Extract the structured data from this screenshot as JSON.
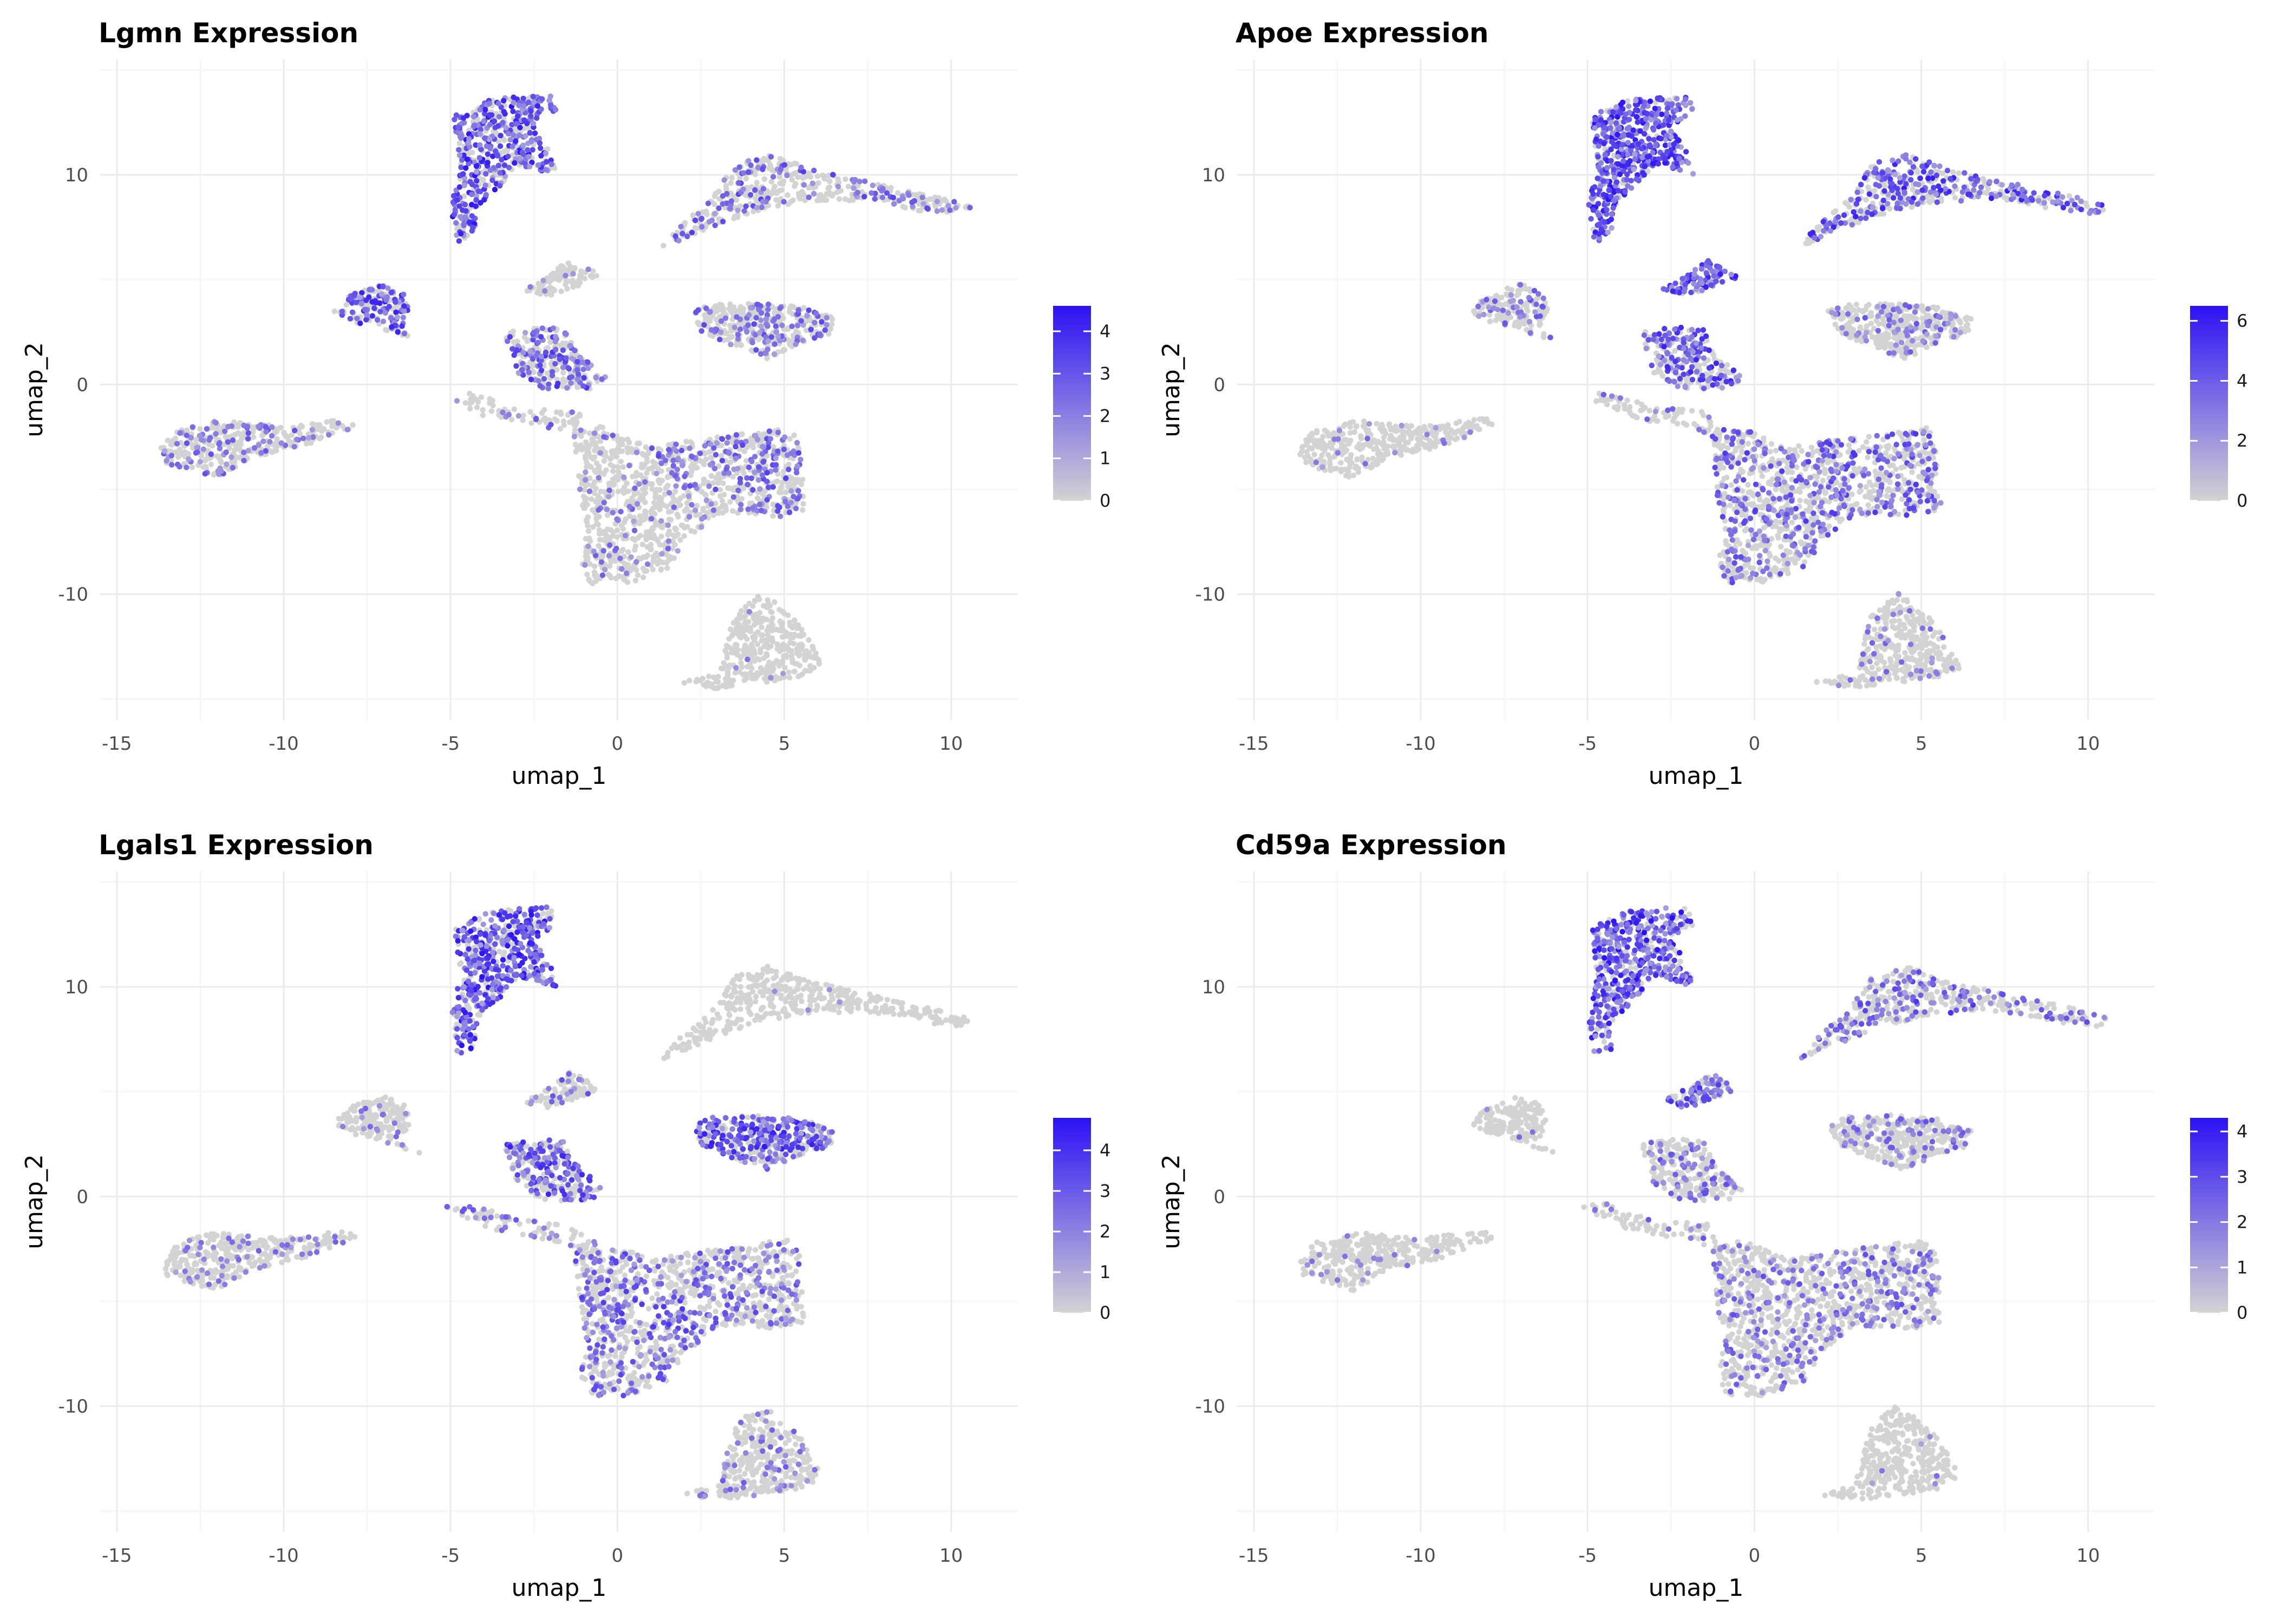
{
  "colors": {
    "low": "#d3d3d3",
    "high": "#2b12f5",
    "grid_major": "#ebebeb",
    "grid_minor": "#f4f4f4"
  },
  "chart_data": [
    {
      "type": "scatter",
      "title": "Lgmn Expression",
      "xlabel": "umap_1",
      "ylabel": "umap_2",
      "xlim": [
        -15.5,
        12
      ],
      "ylim": [
        -16,
        15.5
      ],
      "xticks": [
        -15,
        -10,
        -5,
        0,
        5,
        10
      ],
      "yticks": [
        -10,
        0,
        10
      ],
      "grid": true,
      "legend": {
        "position": "right",
        "min": 0,
        "max": 4.6,
        "ticks": [
          0,
          1,
          2,
          3,
          4
        ]
      },
      "cluster_expression": [
        0.22,
        0.02,
        0.65,
        0.05,
        0.55,
        0.45,
        0.2,
        0.12,
        0.35,
        0.15,
        0.28,
        0.35,
        0.08
      ]
    },
    {
      "type": "scatter",
      "title": "Apoe Expression",
      "xlabel": "umap_1",
      "ylabel": "umap_2",
      "xlim": [
        -15.5,
        12
      ],
      "ylim": [
        -16,
        15.5
      ],
      "xticks": [
        -15,
        -10,
        -5,
        0,
        5,
        10
      ],
      "yticks": [
        -10,
        0,
        10
      ],
      "grid": true,
      "legend": {
        "position": "right",
        "min": 0,
        "max": 6.5,
        "ticks": [
          0,
          2,
          4,
          6
        ]
      },
      "cluster_expression": [
        0.05,
        0.1,
        0.9,
        0.85,
        0.25,
        0.55,
        0.15,
        0.4,
        0.4,
        0.3,
        0.2,
        0.55,
        0.6
      ]
    },
    {
      "type": "scatter",
      "title": "Lgals1 Expression",
      "xlabel": "umap_1",
      "ylabel": "umap_2",
      "xlim": [
        -15.5,
        12
      ],
      "ylim": [
        -16,
        15.5
      ],
      "xticks": [
        -15,
        -10,
        -5,
        0,
        5,
        10
      ],
      "yticks": [
        -10,
        0,
        10
      ],
      "grid": true,
      "legend": {
        "position": "right",
        "min": 0,
        "max": 4.8,
        "ticks": [
          0,
          1,
          2,
          3,
          4
        ]
      },
      "cluster_expression": [
        0.12,
        0.15,
        0.75,
        0.25,
        0.1,
        0.55,
        0.3,
        0.4,
        0.3,
        0.3,
        0.6,
        0.02,
        0.05
      ]
    },
    {
      "type": "scatter",
      "title": "Cd59a Expression",
      "xlabel": "umap_1",
      "ylabel": "umap_2",
      "xlim": [
        -15.5,
        12
      ],
      "ylim": [
        -16,
        15.5
      ],
      "xticks": [
        -15,
        -10,
        -5,
        0,
        5,
        10
      ],
      "yticks": [
        -10,
        0,
        10
      ],
      "grid": true,
      "legend": {
        "position": "right",
        "min": 0,
        "max": 4.3,
        "ticks": [
          0,
          1,
          2,
          3,
          4
        ]
      },
      "cluster_expression": [
        0.05,
        0.02,
        0.75,
        0.5,
        0.05,
        0.25,
        0.25,
        0.25,
        0.25,
        0.2,
        0.2,
        0.3,
        0.45
      ]
    }
  ]
}
